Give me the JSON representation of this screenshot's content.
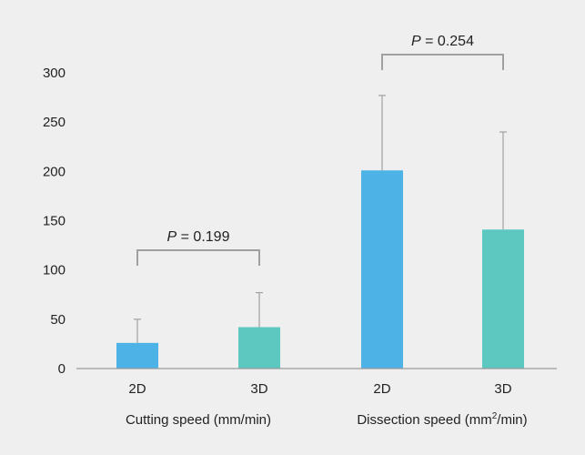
{
  "chart_data": {
    "type": "bar",
    "groups": [
      {
        "label": "Cutting speed (mm/min)",
        "label_pre": "Cutting speed (mm/min)",
        "label_sup": "",
        "label_post": ""
      },
      {
        "label": "Dissection speed (mm²/min)",
        "label_pre": "Dissection speed (mm",
        "label_sup": "2",
        "label_post": "/min)"
      }
    ],
    "categories": [
      "2D",
      "3D",
      "2D",
      "3D"
    ],
    "values": [
      26,
      42,
      201,
      141
    ],
    "error_upper": [
      50,
      77,
      277,
      240
    ],
    "colors": [
      "#4db3e6",
      "#5cc8c0",
      "#4db3e6",
      "#5cc8c0"
    ],
    "ylim": [
      0,
      300
    ],
    "yticks": [
      "0",
      "50",
      "100",
      "150",
      "200",
      "250",
      "300"
    ],
    "grid": false,
    "comparisons": [
      {
        "p_label": "P",
        "p_text": " = 0.199",
        "from": 0,
        "to": 1
      },
      {
        "p_label": "P",
        "p_text": " = 0.254",
        "from": 2,
        "to": 3
      }
    ]
  }
}
